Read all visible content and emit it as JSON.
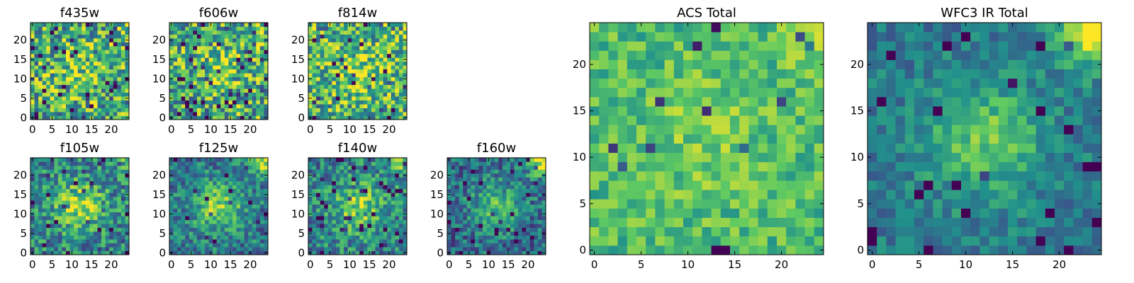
{
  "colormap": {
    "name": "viridis",
    "stops": [
      "#440154",
      "#3b528b",
      "#21918c",
      "#5ec962",
      "#fde725"
    ]
  },
  "chart_data": [
    {
      "type": "heatmap",
      "title": "f435w",
      "grid": [
        25,
        25
      ],
      "xlim": [
        0,
        24
      ],
      "ylim": [
        0,
        24
      ],
      "xticks": [
        0,
        5,
        10,
        15,
        20
      ],
      "yticks": [
        0,
        5,
        10,
        15,
        20
      ],
      "seed": 11,
      "mean": 0.62,
      "noise": 0.75,
      "blob": 0.15,
      "corner": 0.15,
      "dips": 0.08
    },
    {
      "type": "heatmap",
      "title": "f606w",
      "grid": [
        25,
        25
      ],
      "xlim": [
        0,
        24
      ],
      "ylim": [
        0,
        24
      ],
      "xticks": [
        0,
        5,
        10,
        15,
        20
      ],
      "yticks": [
        0,
        5,
        10,
        15,
        20
      ],
      "seed": 23,
      "mean": 0.62,
      "noise": 0.75,
      "blob": 0.15,
      "corner": 0.1,
      "dips": 0.08
    },
    {
      "type": "heatmap",
      "title": "f814w",
      "grid": [
        25,
        25
      ],
      "xlim": [
        0,
        24
      ],
      "ylim": [
        0,
        24
      ],
      "xticks": [
        0,
        5,
        10,
        15,
        20
      ],
      "yticks": [
        0,
        5,
        10,
        15,
        20
      ],
      "seed": 37,
      "mean": 0.65,
      "noise": 0.7,
      "blob": 0.2,
      "corner": 0.1,
      "dips": 0.06
    },
    {
      "type": "heatmap",
      "title": "f105w",
      "grid": [
        25,
        25
      ],
      "xlim": [
        0,
        24
      ],
      "ylim": [
        0,
        24
      ],
      "xticks": [
        0,
        5,
        10,
        15,
        20
      ],
      "yticks": [
        0,
        5,
        10,
        15,
        20
      ],
      "seed": 41,
      "mean": 0.45,
      "noise": 0.55,
      "blob": 0.4,
      "corner": 0.15,
      "dips": 0.04
    },
    {
      "type": "heatmap",
      "title": "f125w",
      "grid": [
        25,
        25
      ],
      "xlim": [
        0,
        24
      ],
      "ylim": [
        0,
        24
      ],
      "xticks": [
        0,
        5,
        10,
        15,
        20
      ],
      "yticks": [
        0,
        5,
        10,
        15,
        20
      ],
      "seed": 53,
      "mean": 0.4,
      "noise": 0.45,
      "blob": 0.4,
      "corner": 0.5,
      "dips": 0.03
    },
    {
      "type": "heatmap",
      "title": "f140w",
      "grid": [
        25,
        25
      ],
      "xlim": [
        0,
        24
      ],
      "ylim": [
        0,
        24
      ],
      "xticks": [
        0,
        5,
        10,
        15,
        20
      ],
      "yticks": [
        0,
        5,
        10,
        15,
        20
      ],
      "seed": 67,
      "mean": 0.45,
      "noise": 0.5,
      "blob": 0.35,
      "corner": 0.3,
      "dips": 0.05
    },
    {
      "type": "heatmap",
      "title": "f160w",
      "grid": [
        25,
        25
      ],
      "xlim": [
        0,
        24
      ],
      "ylim": [
        0,
        24
      ],
      "xticks": [
        0,
        5,
        10,
        15,
        20
      ],
      "yticks": [
        0,
        5,
        10,
        15,
        20
      ],
      "seed": 79,
      "mean": 0.35,
      "noise": 0.45,
      "blob": 0.35,
      "corner": 0.6,
      "dips": 0.05
    },
    {
      "type": "heatmap",
      "title": "ACS Total",
      "grid": [
        25,
        25
      ],
      "xlim": [
        0,
        24
      ],
      "ylim": [
        0,
        24
      ],
      "xticks": [
        0,
        5,
        10,
        15,
        20
      ],
      "yticks": [
        0,
        5,
        10,
        15,
        20
      ],
      "seed": 97,
      "mean": 0.68,
      "noise": 0.35,
      "blob": 0.1,
      "corner": 0.15,
      "dips": 0.03
    },
    {
      "type": "heatmap",
      "title": "WFC3 IR Total",
      "grid": [
        25,
        25
      ],
      "xlim": [
        0,
        24
      ],
      "ylim": [
        0,
        24
      ],
      "xticks": [
        0,
        5,
        10,
        15,
        20
      ],
      "yticks": [
        0,
        5,
        10,
        15,
        20
      ],
      "seed": 101,
      "mean": 0.4,
      "noise": 0.3,
      "blob": 0.35,
      "corner": 0.6,
      "dips": 0.04
    }
  ]
}
